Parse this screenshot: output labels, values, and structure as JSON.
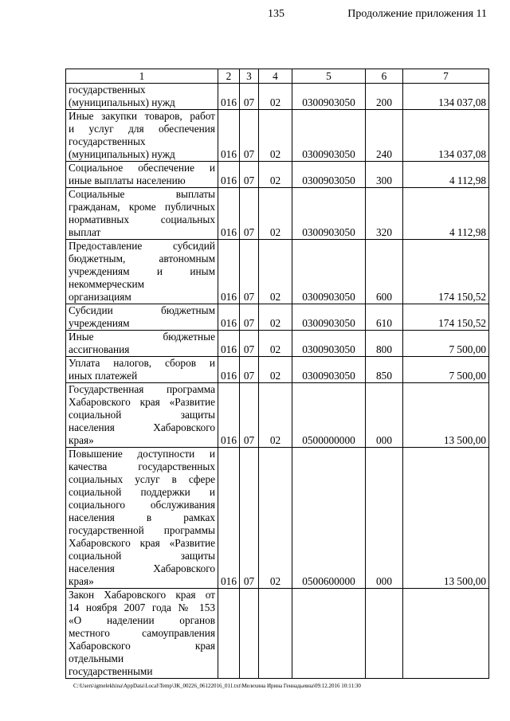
{
  "header": {
    "page_number": "135",
    "continuation": "Продолжение приложения 11"
  },
  "table": {
    "columns": [
      "1",
      "2",
      "3",
      "4",
      "5",
      "6",
      "7"
    ],
    "rows": [
      {
        "name": [
          "государственных",
          "(муниципальных) нужд"
        ],
        "c2": "016",
        "c3": "07",
        "c4": "02",
        "c5": "0300903050",
        "c6": "200",
        "c7": "134 037,08"
      },
      {
        "name": [
          "Иные закупки товаров, работ",
          "и услуг для обеспечения",
          "государственных",
          "(муниципальных) нужд"
        ],
        "c2": "016",
        "c3": "07",
        "c4": "02",
        "c5": "0300903050",
        "c6": "240",
        "c7": "134 037,08"
      },
      {
        "name": [
          "Социальное обеспечение и",
          "иные выплаты населению"
        ],
        "c2": "016",
        "c3": "07",
        "c4": "02",
        "c5": "0300903050",
        "c6": "300",
        "c7": "4 112,98"
      },
      {
        "name": [
          "Социальные выплаты",
          "гражданам, кроме публичных",
          "нормативных социальных",
          "выплат"
        ],
        "c2": "016",
        "c3": "07",
        "c4": "02",
        "c5": "0300903050",
        "c6": "320",
        "c7": "4 112,98"
      },
      {
        "name": [
          "Предоставление субсидий",
          "бюджетным, автономным",
          "учреждениям и иным",
          "некоммерческим",
          "организациям"
        ],
        "c2": "016",
        "c3": "07",
        "c4": "02",
        "c5": "0300903050",
        "c6": "600",
        "c7": "174 150,52"
      },
      {
        "name": [
          "Субсидии бюджетным",
          "учреждениям"
        ],
        "c2": "016",
        "c3": "07",
        "c4": "02",
        "c5": "0300903050",
        "c6": "610",
        "c7": "174 150,52"
      },
      {
        "name": [
          "Иные бюджетные",
          "ассигнования"
        ],
        "c2": "016",
        "c3": "07",
        "c4": "02",
        "c5": "0300903050",
        "c6": "800",
        "c7": "7 500,00"
      },
      {
        "name": [
          "Уплата налогов, сборов и",
          "иных платежей"
        ],
        "c2": "016",
        "c3": "07",
        "c4": "02",
        "c5": "0300903050",
        "c6": "850",
        "c7": "7 500,00"
      },
      {
        "name": [
          "Государственная программа",
          "Хабаровского края «Развитие",
          "социальной защиты",
          "населения Хабаровского",
          "края»"
        ],
        "c2": "016",
        "c3": "07",
        "c4": "02",
        "c5": "0500000000",
        "c6": "000",
        "c7": "13 500,00"
      },
      {
        "name": [
          "Повышение доступности и",
          "качества государственных",
          "социальных услуг в сфере",
          "социальной поддержки и",
          "социального обслуживания",
          "населения в рамках",
          "государственной программы",
          "Хабаровского края «Развитие",
          "социальной защиты",
          "населения Хабаровского",
          "края»"
        ],
        "c2": "016",
        "c3": "07",
        "c4": "02",
        "c5": "0500600000",
        "c6": "000",
        "c7": "13 500,00"
      },
      {
        "name": [
          "Закон Хабаровского края от",
          "14 ноября 2007 года № 153",
          "«О наделении органов",
          "местного самоуправления",
          "Хабаровского края",
          "отдельными",
          "государственными"
        ],
        "c2": "",
        "c3": "",
        "c4": "",
        "c5": "",
        "c6": "",
        "c7": ""
      }
    ]
  },
  "footer": {
    "path": "C:\\Users\\igmelekhina\\AppData\\Local\\Temp\\ЗК_00226_06122016_011.txt\\Мелехина Ирина Геннадьевна\\09.12.2016 10:11:30"
  }
}
